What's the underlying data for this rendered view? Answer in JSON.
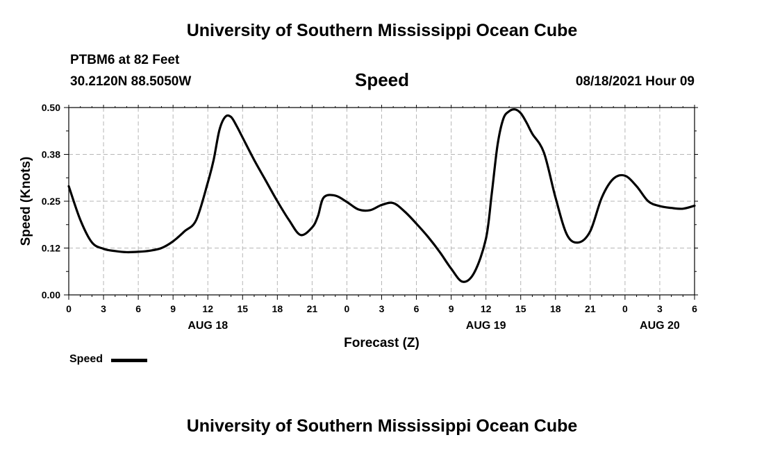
{
  "header": {
    "title_top": "University of Southern Mississippi Ocean Cube",
    "title_bottom": "University of Southern Mississippi Ocean Cube",
    "station": "PTBM6 at 82 Feet",
    "coords": "30.2120N  88.5050W",
    "variable": "Speed",
    "timestamp": "08/18/2021 Hour 09"
  },
  "legend": {
    "label": "Speed"
  },
  "chart_data": {
    "type": "line",
    "xlabel": "Forecast (Z)",
    "ylabel": "Speed (Knots)",
    "ylim": [
      0,
      0.5
    ],
    "yticks": [
      "0.00",
      "0.12",
      "0.25",
      "0.38",
      "0.50"
    ],
    "xlim": [
      0,
      54
    ],
    "xtick_labels": [
      "0",
      "3",
      "6",
      "9",
      "12",
      "15",
      "18",
      "21",
      "0",
      "3",
      "6",
      "9",
      "12",
      "15",
      "18",
      "21",
      "0",
      "3",
      "6"
    ],
    "date_labels": [
      {
        "label": "AUG 18",
        "hour": 12
      },
      {
        "label": "AUG 19",
        "hour": 36
      },
      {
        "label": "AUG 20",
        "hour": 51
      }
    ],
    "grid": true,
    "legend_position": "bottom-left",
    "series": [
      {
        "name": "Speed",
        "color": "#000000",
        "x": [
          0,
          1,
          2,
          3,
          4,
          5,
          6,
          7,
          8,
          9,
          10,
          11,
          12,
          12.5,
          13,
          13.5,
          14,
          14.5,
          15,
          16,
          17,
          18,
          19,
          20,
          21,
          21.5,
          22,
          23,
          24,
          25,
          26,
          27,
          28,
          29,
          30,
          31,
          32,
          33,
          34,
          35,
          36,
          36.5,
          37,
          37.5,
          38,
          38.5,
          39,
          39.5,
          40,
          41,
          42,
          43,
          44,
          45,
          46,
          47,
          48,
          49,
          50,
          51,
          52,
          53,
          54
        ],
        "values": [
          0.29,
          0.2,
          0.14,
          0.123,
          0.117,
          0.114,
          0.115,
          0.118,
          0.125,
          0.143,
          0.17,
          0.2,
          0.3,
          0.36,
          0.44,
          0.475,
          0.475,
          0.45,
          0.42,
          0.36,
          0.305,
          0.25,
          0.2,
          0.16,
          0.18,
          0.21,
          0.26,
          0.265,
          0.248,
          0.228,
          0.226,
          0.24,
          0.245,
          0.222,
          0.19,
          0.155,
          0.115,
          0.07,
          0.035,
          0.06,
          0.15,
          0.27,
          0.4,
          0.47,
          0.49,
          0.495,
          0.485,
          0.46,
          0.43,
          0.38,
          0.26,
          0.16,
          0.14,
          0.17,
          0.26,
          0.31,
          0.318,
          0.29,
          0.25,
          0.237,
          0.232,
          0.23,
          0.238
        ]
      }
    ]
  }
}
